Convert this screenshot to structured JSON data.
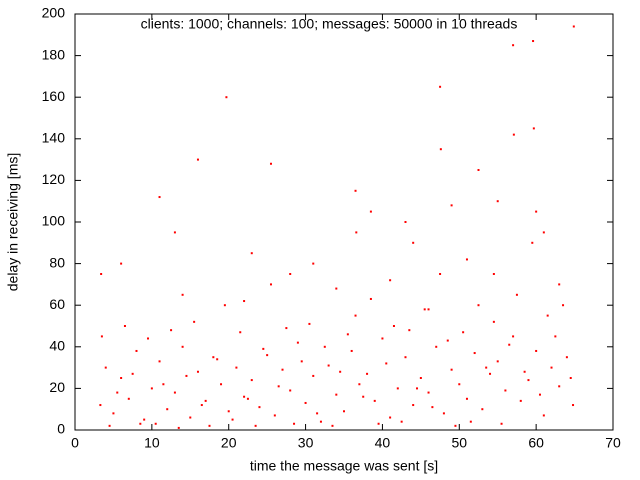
{
  "chart_data": {
    "type": "scatter",
    "title": "clients: 1000; channels: 100; messages: 50000 in 10 threads",
    "x_label": "time the message was sent [s]",
    "y_label": "delay in receiving [ms]",
    "color": "#ff0000",
    "xlim": [
      0,
      70
    ],
    "xticks": [
      0,
      10,
      20,
      30,
      40,
      50,
      60,
      70
    ],
    "ylim": [
      0,
      200
    ],
    "yticks": [
      0,
      20,
      40,
      60,
      80,
      100,
      120,
      140,
      160,
      180,
      200
    ],
    "grid": false,
    "x": [
      3.3,
      4,
      5,
      6,
      7,
      8,
      9,
      10,
      11,
      12,
      13,
      14,
      15,
      16,
      17,
      18,
      19,
      20,
      21,
      22,
      23,
      24,
      25,
      26,
      27,
      28,
      29,
      30,
      31,
      32,
      33,
      34,
      35,
      36,
      37,
      38,
      39,
      40,
      41,
      42,
      43,
      44,
      45,
      46,
      47,
      48,
      49,
      50,
      51,
      52,
      53,
      54,
      55,
      56,
      57,
      58,
      59,
      60,
      61,
      62,
      63,
      64,
      64.8,
      3.5,
      4.5,
      5.5,
      6.5,
      7.5,
      8.5,
      9.5,
      10.5,
      11.5,
      12.5,
      13.5,
      14.5,
      15.5,
      16.5,
      17.5,
      18.5,
      19.5,
      20.5,
      21.5,
      22.5,
      23.5,
      24.5,
      25.5,
      26.5,
      27.5,
      28.5,
      29.5,
      30.5,
      31.5,
      32.5,
      33.5,
      34.5,
      35.5,
      36.5,
      37.5,
      38.5,
      39.5,
      40.5,
      41.5,
      42.5,
      43.5,
      44.5,
      45.5,
      46.5,
      47.5,
      48.5,
      49.5,
      50.5,
      51.5,
      52.5,
      53.5,
      54.5,
      55.5,
      56.5,
      57.5,
      58.5,
      59.5,
      60.5,
      61.5,
      62.5,
      63.5,
      64.5,
      3.4,
      6,
      11,
      16,
      19.7,
      25.5,
      36.5,
      36.6,
      47.5,
      47.6,
      57,
      57.1,
      59.6,
      59.7,
      60,
      52.5,
      49,
      43,
      38.5,
      44,
      55,
      28,
      31,
      23,
      13,
      14,
      22,
      34,
      41,
      46,
      51,
      54.5,
      61,
      63,
      64.9
    ],
    "y": [
      12,
      30,
      8,
      25,
      15,
      38,
      5,
      20,
      33,
      10,
      18,
      40,
      6,
      28,
      14,
      35,
      22,
      9,
      30,
      16,
      24,
      11,
      36,
      7,
      29,
      19,
      42,
      13,
      26,
      4,
      31,
      17,
      9,
      38,
      22,
      27,
      14,
      44,
      6,
      20,
      35,
      12,
      25,
      18,
      40,
      8,
      29,
      22,
      15,
      37,
      10,
      27,
      33,
      19,
      45,
      14,
      24,
      38,
      7,
      30,
      21,
      35,
      12,
      45,
      2,
      18,
      50,
      27,
      3,
      44,
      3,
      22,
      48,
      1,
      26,
      52,
      12,
      2,
      34,
      60,
      5,
      47,
      15,
      2,
      39,
      70,
      21,
      49,
      3,
      33,
      51,
      8,
      40,
      2,
      28,
      46,
      55,
      16,
      63,
      3,
      32,
      50,
      4,
      48,
      20,
      58,
      11,
      75,
      43,
      2,
      47,
      4,
      60,
      30,
      52,
      3,
      41,
      65,
      28,
      90,
      17,
      55,
      45,
      60,
      25,
      75,
      80,
      112,
      130,
      160,
      128,
      115,
      95,
      165,
      135,
      185,
      142,
      187,
      145,
      105,
      125,
      108,
      100,
      105,
      90,
      110,
      75,
      80,
      85,
      95,
      65,
      62,
      68,
      72,
      58,
      82,
      75,
      95,
      70,
      194
    ]
  }
}
